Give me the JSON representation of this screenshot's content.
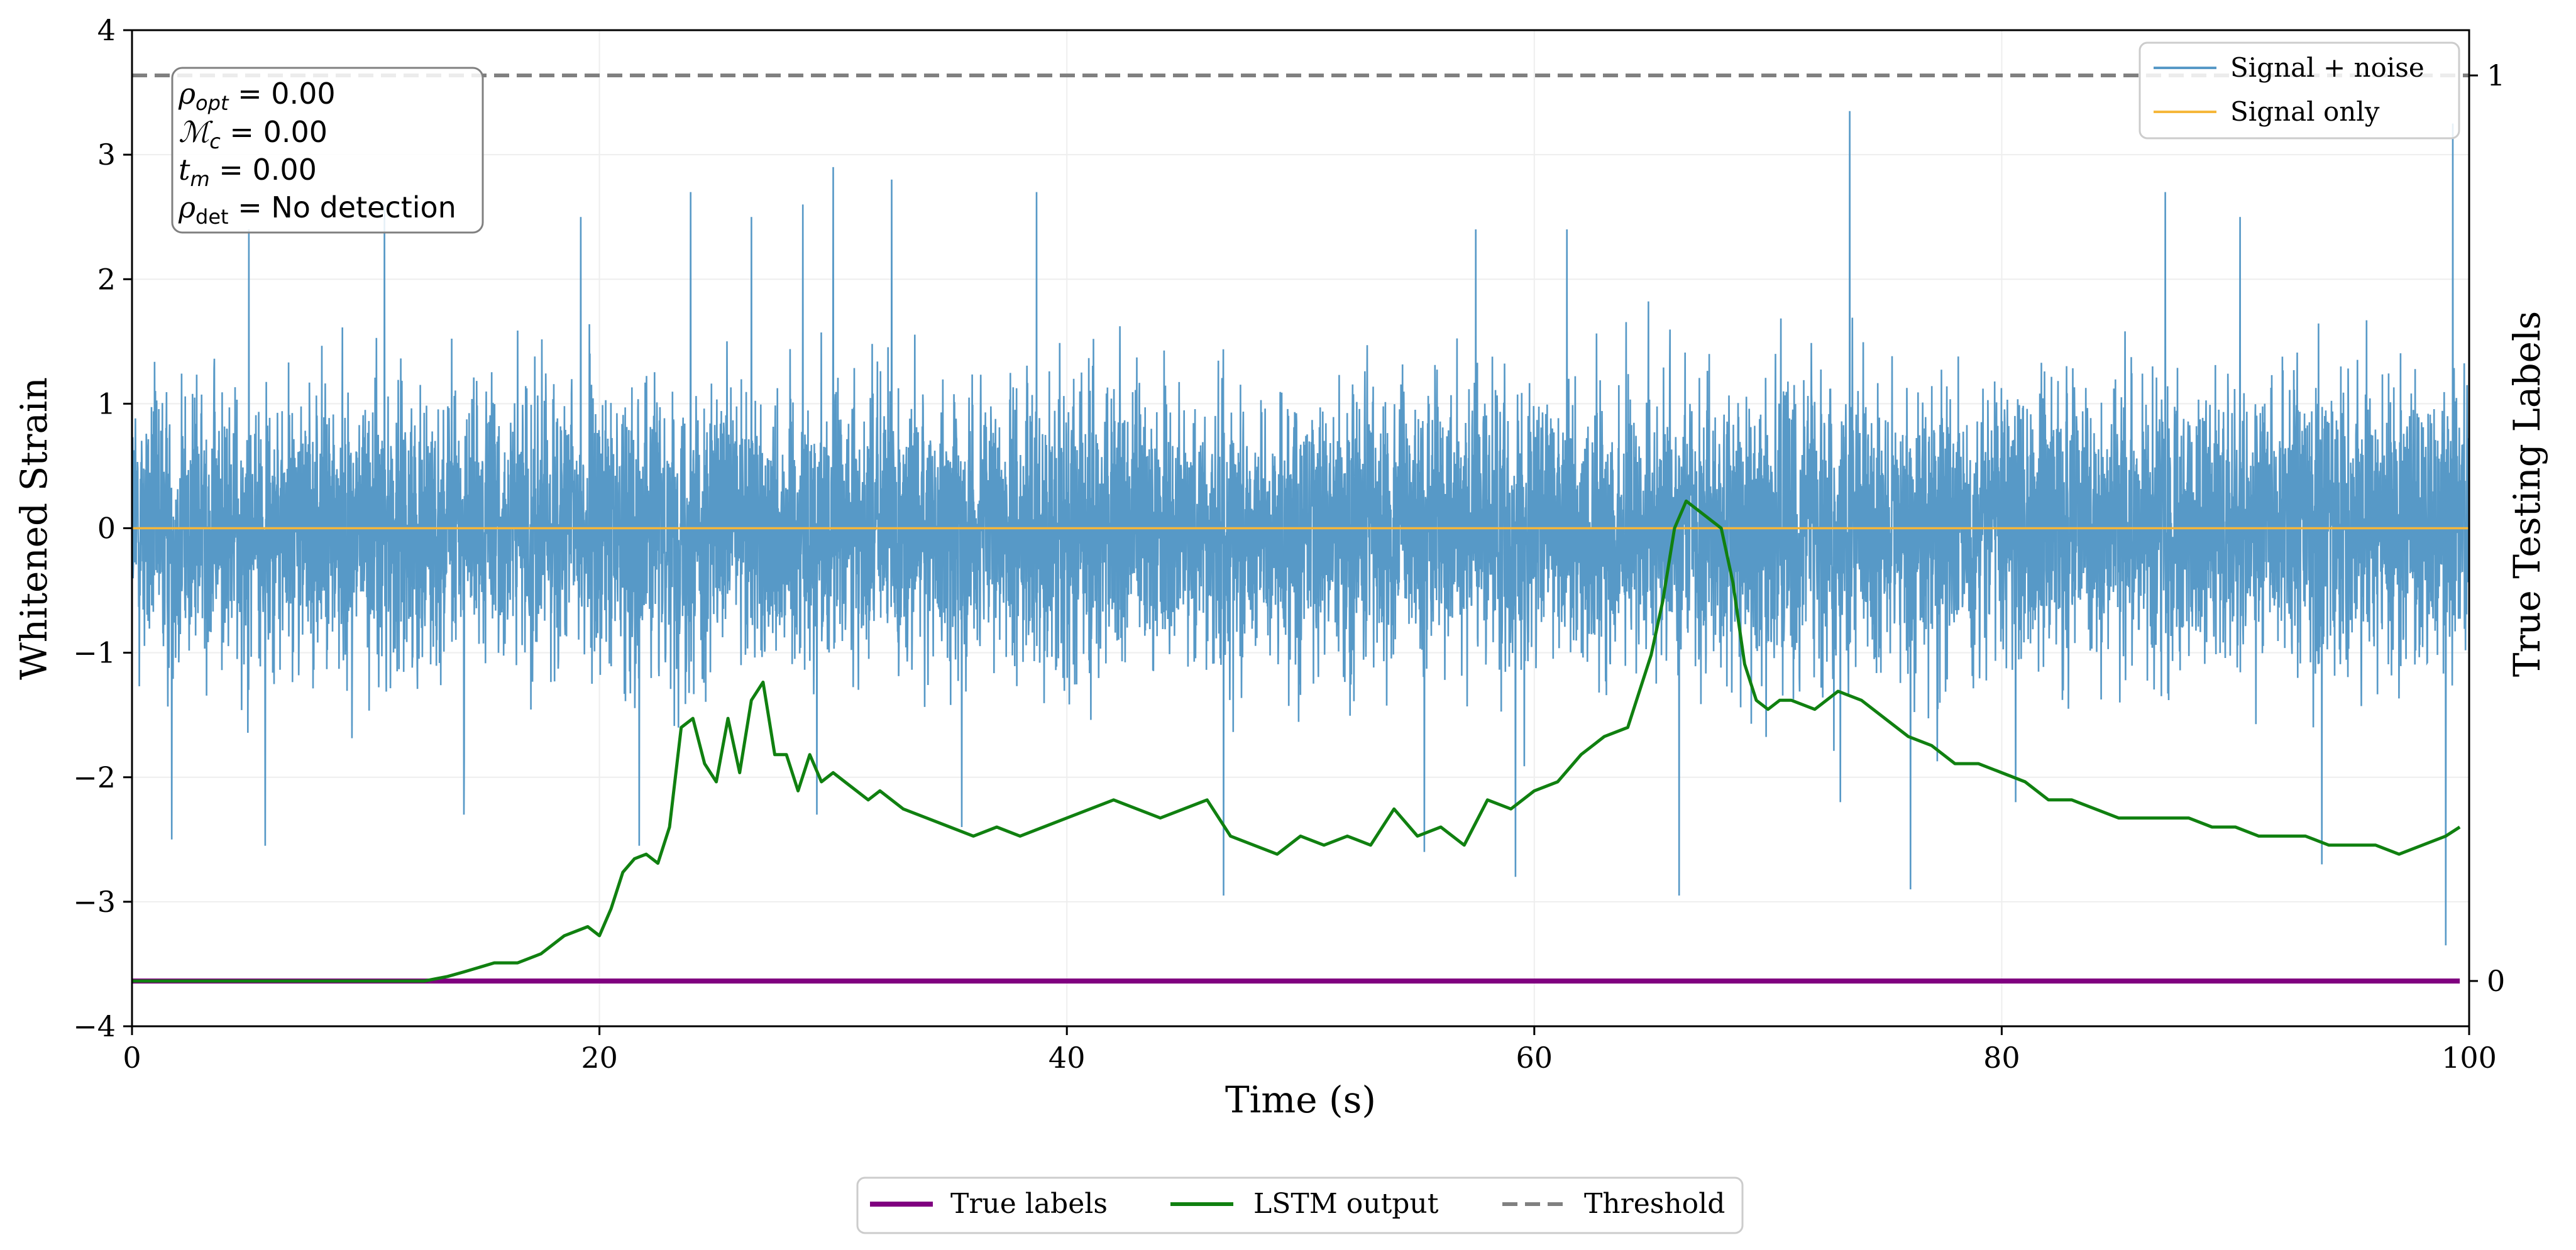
{
  "chart_data": {
    "type": "line",
    "xlabel": "Time (s)",
    "ylabel_left": "Whitened Strain",
    "ylabel_right": "True Testing Labels",
    "xlim": [
      0,
      100
    ],
    "ylim_left": [
      -4,
      4
    ],
    "ylim_right": [
      -0.05,
      1.05
    ],
    "x_ticks": [
      0,
      20,
      40,
      60,
      80,
      100
    ],
    "y_left_ticks": [
      -4,
      -3,
      -2,
      -1,
      0,
      1,
      2,
      3,
      4
    ],
    "y_right_ticks": [
      0,
      1
    ],
    "grid": true,
    "info_box": {
      "rho_opt": "0.00",
      "m_c": "0.00",
      "t_m": "0.00",
      "rho_det": "No detection"
    },
    "legend_top": {
      "placement": "top-right",
      "entries": [
        {
          "label": "Signal + noise",
          "color": "#5799c7"
        },
        {
          "label": "Signal only",
          "color": "#f5b73b"
        }
      ]
    },
    "legend_bottom": {
      "placement": "bottom-center",
      "entries": [
        {
          "label": "True labels",
          "color": "#800080",
          "style": "solid"
        },
        {
          "label": "LSTM output",
          "color": "#108010",
          "style": "solid"
        },
        {
          "label": "Threshold",
          "color": "#808080",
          "style": "dashed"
        }
      ]
    },
    "series": [
      {
        "name": "Signal + noise",
        "axis": "left",
        "color": "#5799c7",
        "note": "whitened gaussian noise around 0",
        "std": 0.55,
        "extremes": [
          [
            5.0,
            2.4
          ],
          [
            10.8,
            2.6
          ],
          [
            19.2,
            2.5
          ],
          [
            23.9,
            2.7
          ],
          [
            26.5,
            2.5
          ],
          [
            28.7,
            2.6
          ],
          [
            30.0,
            2.9
          ],
          [
            32.5,
            2.8
          ],
          [
            38.7,
            2.7
          ],
          [
            57.5,
            2.4
          ],
          [
            61.4,
            2.4
          ],
          [
            73.5,
            3.35
          ],
          [
            87.0,
            2.7
          ],
          [
            90.2,
            2.5
          ],
          [
            99.3,
            3.25
          ],
          [
            5.7,
            -2.55
          ],
          [
            21.7,
            -2.55
          ],
          [
            35.5,
            -2.4
          ],
          [
            46.7,
            -2.95
          ],
          [
            55.3,
            -2.6
          ],
          [
            59.2,
            -2.8
          ],
          [
            66.2,
            -2.95
          ],
          [
            73.1,
            -2.2
          ],
          [
            76.1,
            -2.9
          ],
          [
            80.6,
            -2.2
          ],
          [
            93.7,
            -2.7
          ],
          [
            99.0,
            -3.35
          ],
          [
            1.7,
            -2.5
          ],
          [
            14.2,
            -2.3
          ],
          [
            29.3,
            -2.3
          ]
        ]
      },
      {
        "name": "Signal only",
        "axis": "left",
        "color": "#f5b73b",
        "x": [
          0,
          100
        ],
        "y": [
          0,
          0
        ]
      },
      {
        "name": "True labels",
        "axis": "right",
        "color": "#800080",
        "x": [
          0,
          99.6
        ],
        "y": [
          0,
          0
        ]
      },
      {
        "name": "LSTM output",
        "axis": "right",
        "color": "#108010",
        "x": [
          0,
          12.5,
          13.5,
          14.2,
          15.5,
          16.5,
          17.5,
          18.5,
          19.5,
          20.0,
          20.5,
          21.0,
          21.5,
          22.0,
          22.5,
          23.0,
          23.5,
          24.0,
          24.5,
          25.0,
          25.5,
          26.0,
          26.5,
          27.0,
          27.5,
          28.0,
          28.5,
          29.0,
          29.5,
          30.0,
          30.5,
          31.0,
          31.5,
          32.0,
          33.0,
          34.0,
          35.0,
          36.0,
          37.0,
          38.0,
          39.0,
          40.0,
          41.0,
          42.0,
          43.0,
          44.0,
          45.0,
          46.0,
          47.0,
          48.0,
          49.0,
          50.0,
          51.0,
          52.0,
          53.0,
          54.0,
          55.0,
          56.0,
          57.0,
          58.0,
          59.0,
          60.0,
          61.0,
          62.0,
          62.5,
          63.0,
          64.0,
          65.0,
          65.5,
          66.0,
          66.5,
          67.0,
          67.5,
          68.0,
          68.5,
          69.0,
          69.5,
          70.0,
          70.5,
          71.0,
          72.0,
          73.0,
          74.0,
          75.0,
          76.0,
          77.0,
          78.0,
          79.0,
          80.0,
          81.0,
          82.0,
          83.0,
          84.0,
          85.0,
          86.0,
          87.0,
          88.0,
          89.0,
          90.0,
          91.0,
          92.0,
          93.0,
          94.0,
          95.0,
          96.0,
          97.0,
          98.0,
          99.0,
          99.6
        ],
        "y": [
          0,
          0,
          0.005,
          0.01,
          0.02,
          0.02,
          0.03,
          0.05,
          0.06,
          0.05,
          0.08,
          0.12,
          0.135,
          0.14,
          0.13,
          0.17,
          0.28,
          0.29,
          0.24,
          0.22,
          0.29,
          0.23,
          0.31,
          0.33,
          0.25,
          0.25,
          0.21,
          0.25,
          0.22,
          0.23,
          0.22,
          0.21,
          0.2,
          0.21,
          0.19,
          0.18,
          0.17,
          0.16,
          0.17,
          0.16,
          0.17,
          0.18,
          0.19,
          0.2,
          0.19,
          0.18,
          0.19,
          0.2,
          0.16,
          0.15,
          0.14,
          0.16,
          0.15,
          0.16,
          0.15,
          0.19,
          0.16,
          0.17,
          0.15,
          0.2,
          0.19,
          0.21,
          0.22,
          0.25,
          0.26,
          0.27,
          0.28,
          0.36,
          0.42,
          0.5,
          0.53,
          0.52,
          0.51,
          0.5,
          0.44,
          0.35,
          0.31,
          0.3,
          0.31,
          0.31,
          0.3,
          0.32,
          0.31,
          0.29,
          0.27,
          0.26,
          0.24,
          0.24,
          0.23,
          0.22,
          0.2,
          0.2,
          0.19,
          0.18,
          0.18,
          0.18,
          0.18,
          0.17,
          0.17,
          0.16,
          0.16,
          0.16,
          0.15,
          0.15,
          0.15,
          0.14,
          0.15,
          0.16,
          0.17
        ]
      },
      {
        "name": "Threshold",
        "axis": "right",
        "color": "#808080",
        "style": "dashed",
        "x": [
          0,
          100
        ],
        "y": [
          1,
          1
        ]
      }
    ]
  }
}
